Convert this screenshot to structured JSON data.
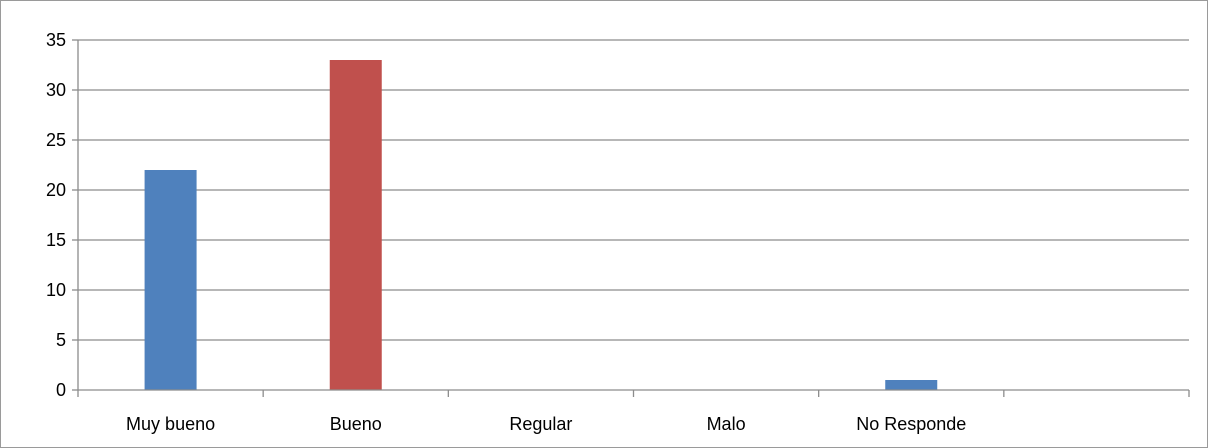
{
  "chart_data": {
    "type": "bar",
    "categories": [
      "Muy bueno",
      "Bueno",
      "Regular",
      "Malo",
      "No Responde",
      ""
    ],
    "values": [
      22,
      33,
      0,
      0,
      1,
      0
    ],
    "bar_colors": [
      "#4F81BD",
      "#C0504D",
      "#4F81BD",
      "#4F81BD",
      "#4F81BD",
      "#4F81BD"
    ],
    "title": "",
    "xlabel": "",
    "ylabel": "",
    "ylim": [
      0,
      35
    ],
    "yticks": [
      "0",
      "5",
      "10",
      "15",
      "20",
      "25",
      "30",
      "35"
    ],
    "grid": true,
    "legend": "none",
    "colors": {
      "gridline": "#8c8c8c",
      "axis": "#8c8c8c",
      "border": "#9a9a9a"
    }
  }
}
